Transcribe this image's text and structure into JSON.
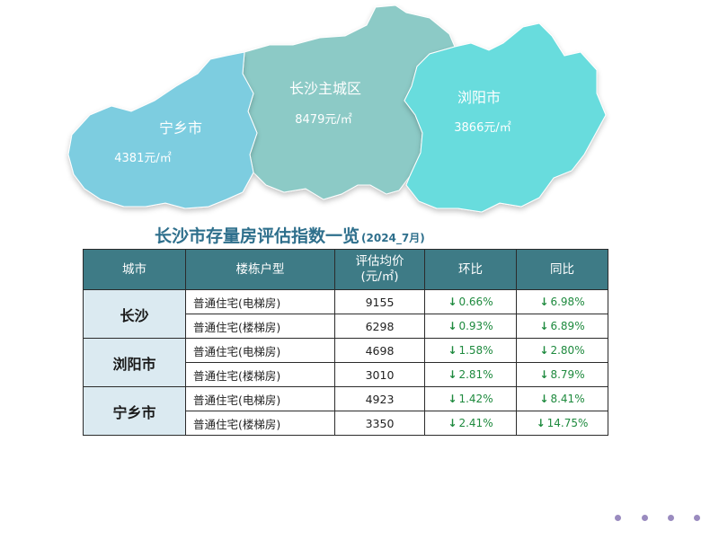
{
  "map": {
    "regions": [
      {
        "id": "ningxiang",
        "name": "宁乡市",
        "price": "4381元/㎡",
        "color": "#7dcde0"
      },
      {
        "id": "main",
        "name": "长沙主城区",
        "price": "8479元/㎡",
        "color": "#8ccac6"
      },
      {
        "id": "liuyang",
        "name": "浏阳市",
        "price": "3866元/㎡",
        "color": "#67dcdd"
      }
    ]
  },
  "table": {
    "title": "长沙市存量房评估指数一览",
    "subtitle": "(2024_7月)",
    "headers": {
      "city": "城市",
      "type": "楼栋户型",
      "price_line1": "评估均价",
      "price_line2": "(元/㎡)",
      "mom": "环比",
      "yoy": "同比"
    },
    "groups": [
      {
        "city": "长沙",
        "rows": [
          {
            "type": "普通住宅(电梯房)",
            "price": "9155",
            "mom": "0.66%",
            "yoy": "6.98%"
          },
          {
            "type": "普通住宅(楼梯房)",
            "price": "6298",
            "mom": "0.93%",
            "yoy": "6.89%"
          }
        ]
      },
      {
        "city": "浏阳市",
        "rows": [
          {
            "type": "普通住宅(电梯房)",
            "price": "4698",
            "mom": "1.58%",
            "yoy": "2.80%"
          },
          {
            "type": "普通住宅(楼梯房)",
            "price": "3010",
            "mom": "2.81%",
            "yoy": "8.79%"
          }
        ]
      },
      {
        "city": "宁乡市",
        "rows": [
          {
            "type": "普通住宅(电梯房)",
            "price": "4923",
            "mom": "1.42%",
            "yoy": "8.41%"
          },
          {
            "type": "普通住宅(楼梯房)",
            "price": "3350",
            "mom": "2.41%",
            "yoy": "14.75%"
          }
        ]
      }
    ],
    "trend_icon": "down-arrow-icon",
    "trend_color": "#1e8a3e"
  },
  "decor": {
    "dots_count": 4,
    "dots_color": "#9a8bbf"
  }
}
